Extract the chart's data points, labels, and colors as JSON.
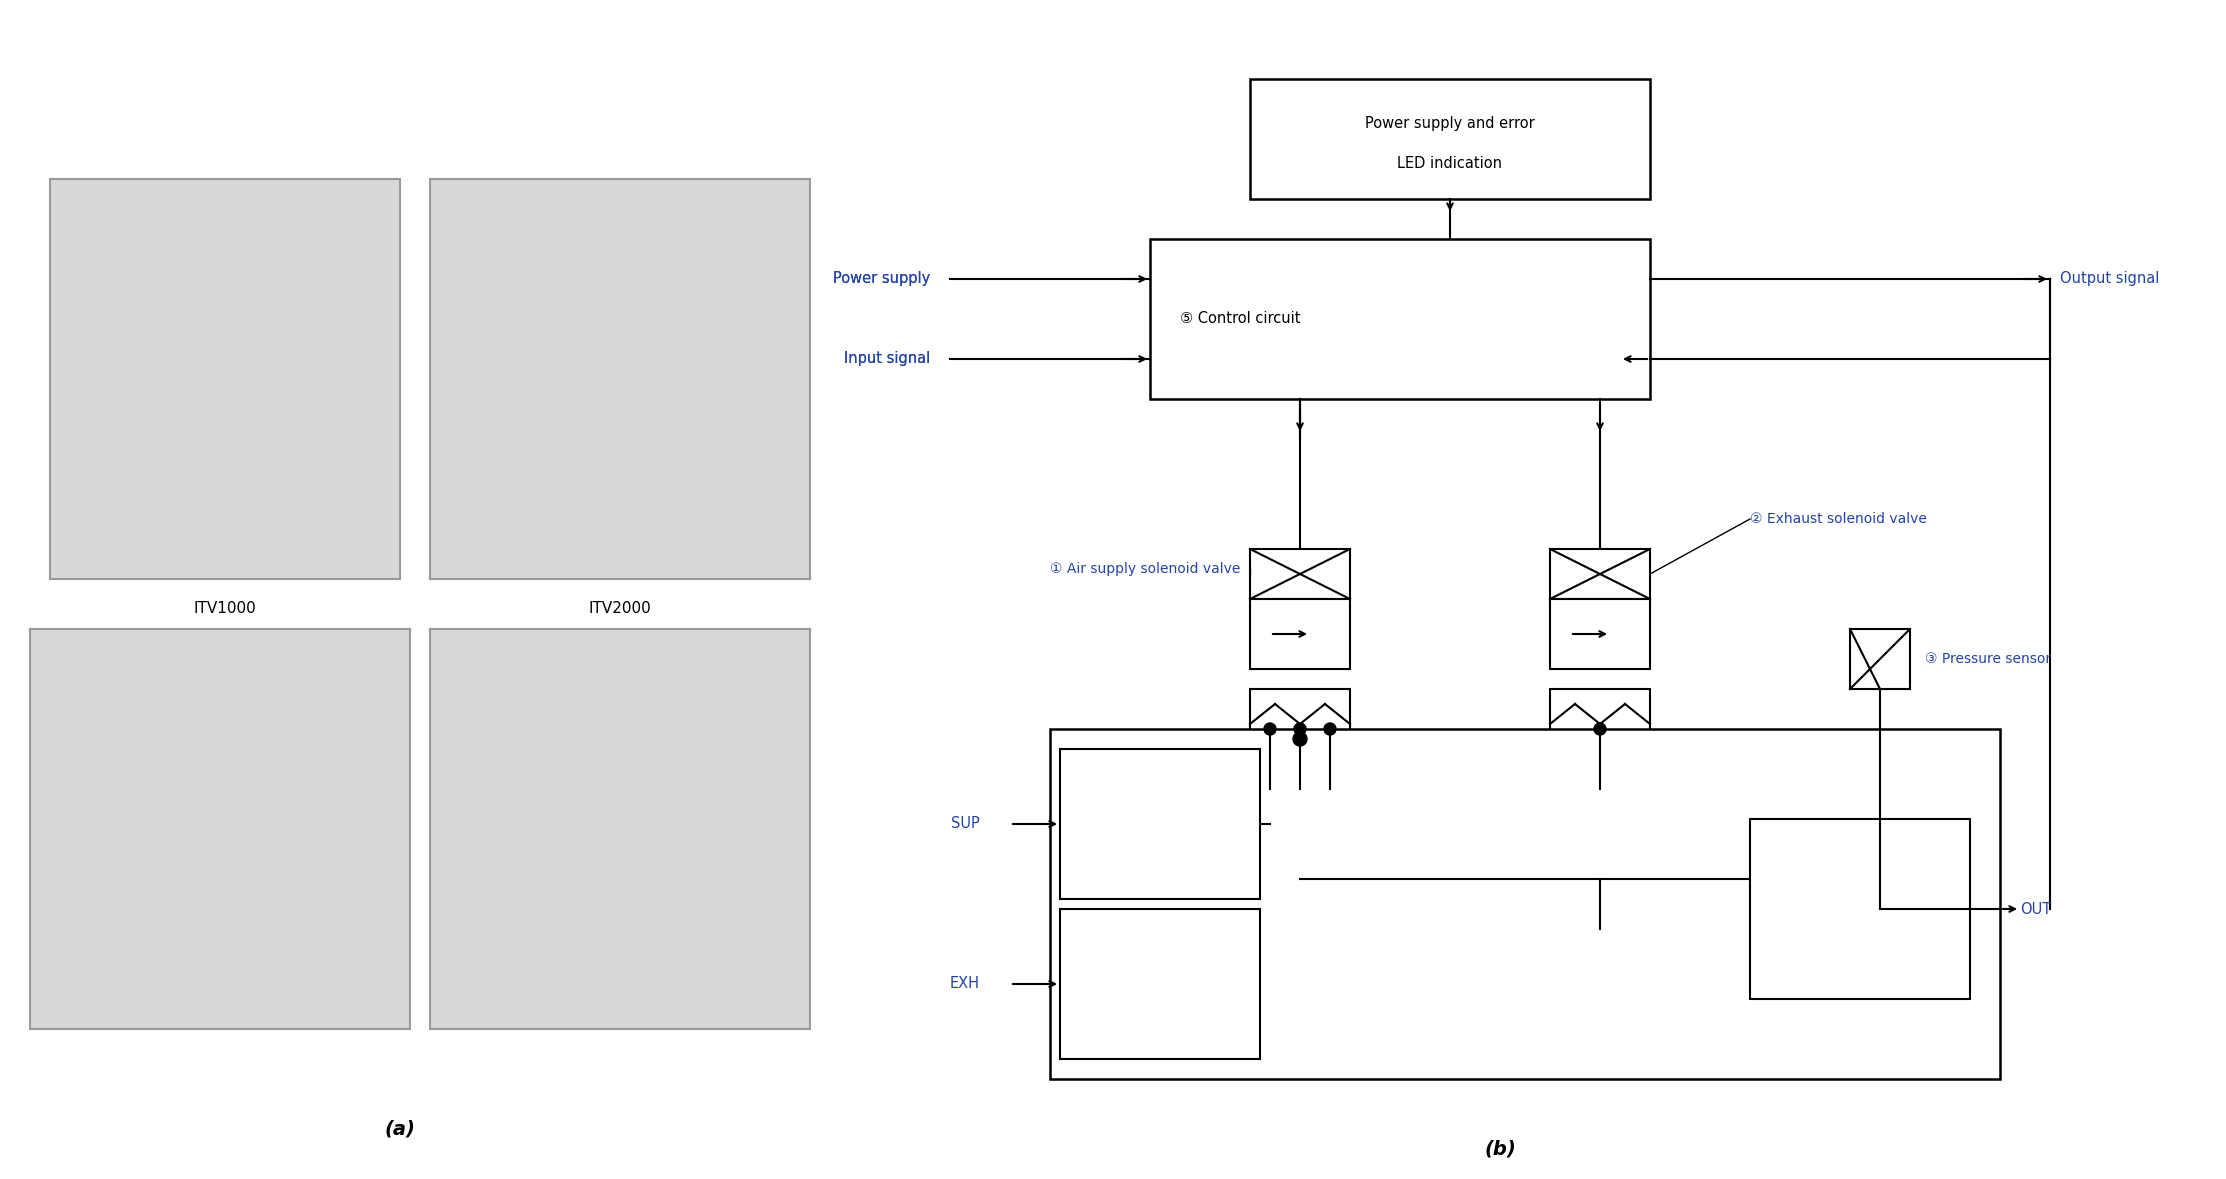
{
  "bg_color": "#ffffff",
  "diagram_title_a": "(a)",
  "diagram_title_b": "(b)",
  "labels": {
    "itv1000": "ITV1000",
    "itv2000": "ITV2000",
    "power_supply_led": "Power supply and error\nLED indication",
    "control_circuit": "⑤ Control circuit",
    "power_supply": "Power supply",
    "input_signal": "Input signal",
    "output_signal": "Output signal",
    "air_supply_solenoid": "① Air supply solenoid valve",
    "exhaust_solenoid": "② Exhaust solenoid valve",
    "pressure_sensor": "③ Pressure sensor",
    "sup": "SUP",
    "exh": "EXH",
    "out": "OUT"
  },
  "colors": {
    "black": "#000000",
    "blue_label": "#2244aa",
    "gray_box": "#888888",
    "white": "#ffffff",
    "line": "#222222"
  }
}
